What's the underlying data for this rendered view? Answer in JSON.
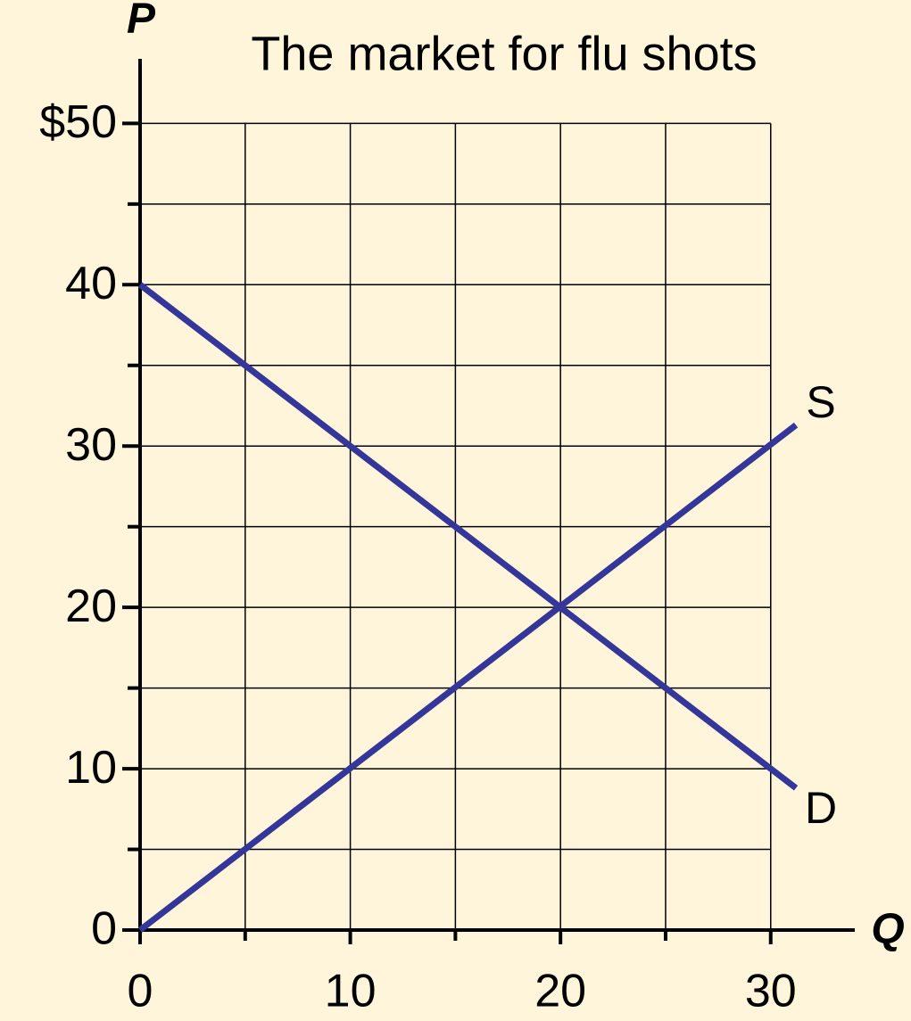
{
  "chart_data": {
    "type": "line",
    "title": "The market for flu shots",
    "x_label": "Q",
    "y_label": "P",
    "xlim": [
      0,
      34
    ],
    "ylim": [
      0,
      54
    ],
    "xticks": [
      0,
      10,
      20,
      30
    ],
    "x_minor_ticks": [
      5,
      15,
      25
    ],
    "yticks": [
      0,
      10,
      20,
      30,
      40,
      {
        "value": 50,
        "label": "$50"
      }
    ],
    "y_minor_ticks": [
      5,
      15,
      25,
      35,
      45
    ],
    "grid": true,
    "series": [
      {
        "name": "S",
        "color": "#35369a",
        "x": [
          0,
          31.2
        ],
        "values": [
          0,
          31.3
        ]
      },
      {
        "name": "D",
        "color": "#35369a",
        "x": [
          0,
          31.2
        ],
        "values": [
          40,
          8.8
        ]
      }
    ]
  }
}
